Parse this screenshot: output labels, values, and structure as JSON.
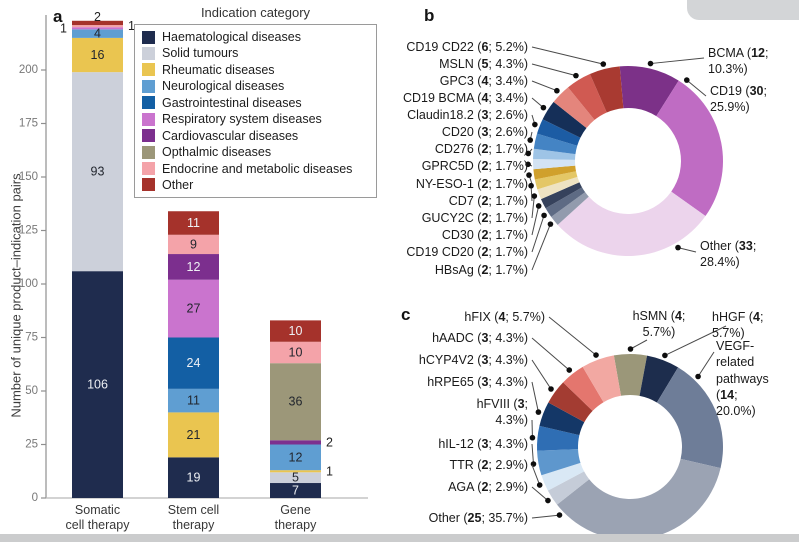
{
  "panel_a": {
    "letter": "a"
  },
  "panel_b": {
    "letter": "b"
  },
  "panel_c": {
    "letter": "c"
  },
  "chart_data": [
    {
      "type": "bar",
      "stacked": true,
      "title": "",
      "ylabel": "Number of unique product–indication pairs",
      "ylim": [
        0,
        225
      ],
      "yticks": [
        0,
        25,
        50,
        75,
        100,
        125,
        150,
        175,
        200
      ],
      "grid": false,
      "legend_position": "upper-right",
      "legend_title": "Indication category",
      "legend": [
        {
          "label": "Haematological diseases",
          "color": "#1f2c4e"
        },
        {
          "label": "Solid tumours",
          "color": "#ccd0da"
        },
        {
          "label": "Rheumatic diseases",
          "color": "#eac550"
        },
        {
          "label": "Neurological diseases",
          "color": "#5f9ed2"
        },
        {
          "label": "Gastrointestinal diseases",
          "color": "#135fa4"
        },
        {
          "label": "Respiratory system diseases",
          "color": "#ca74ce"
        },
        {
          "label": "Cardiovascular diseases",
          "color": "#7c2f8e"
        },
        {
          "label": "Opthalmic diseases",
          "color": "#9c9779"
        },
        {
          "label": "Endocrine and metabolic diseases",
          "color": "#f4a3a9"
        },
        {
          "label": "Other",
          "color": "#a5322b"
        }
      ],
      "categories": [
        "Somatic cell therapy",
        "Stem cell therapy",
        "Gene therapy"
      ],
      "series": [
        {
          "name": "Haematological diseases",
          "values": [
            106,
            19,
            7
          ]
        },
        {
          "name": "Solid tumours",
          "values": [
            93,
            0,
            5
          ]
        },
        {
          "name": "Rheumatic diseases",
          "values": [
            16,
            21,
            1
          ]
        },
        {
          "name": "Neurological diseases",
          "values": [
            4,
            11,
            12
          ]
        },
        {
          "name": "Gastrointestinal diseases",
          "values": [
            0,
            24,
            0
          ]
        },
        {
          "name": "Respiratory system diseases",
          "values": [
            1,
            27,
            0
          ]
        },
        {
          "name": "Cardiovascular diseases",
          "values": [
            0,
            12,
            2
          ]
        },
        {
          "name": "Opthalmic diseases",
          "values": [
            0,
            0,
            36
          ]
        },
        {
          "name": "Endocrine and metabolic diseases",
          "values": [
            1,
            9,
            10
          ]
        },
        {
          "name": "Other",
          "values": [
            2,
            11,
            10
          ]
        }
      ],
      "totals": [
        223,
        134,
        83
      ]
    },
    {
      "type": "pie",
      "subtype": "donut",
      "title": "",
      "total": 116,
      "slices": [
        {
          "name": "BCMA",
          "count": 12,
          "pct": "10.3%",
          "color": "#7c3188"
        },
        {
          "name": "CD19",
          "count": 30,
          "pct": "25.9%",
          "color": "#bf6cc3"
        },
        {
          "name": "Other",
          "count": 33,
          "pct": "28.4%",
          "color": "#ecd4ec"
        },
        {
          "name": "HBsAg",
          "count": 2,
          "pct": "1.7%",
          "color": "#929bad"
        },
        {
          "name": "CD19 CD20",
          "count": 2,
          "pct": "1.7%",
          "color": "#5e6b84"
        },
        {
          "name": "CD30",
          "count": 2,
          "pct": "1.7%",
          "color": "#36425c"
        },
        {
          "name": "GUCY2C",
          "count": 2,
          "pct": "1.7%",
          "color": "#eee3c2"
        },
        {
          "name": "CD7",
          "count": 2,
          "pct": "1.7%",
          "color": "#e4c766"
        },
        {
          "name": "NY-ESO-1",
          "count": 2,
          "pct": "1.7%",
          "color": "#d0a02c"
        },
        {
          "name": "GPRC5D",
          "count": 2,
          "pct": "1.7%",
          "color": "#d3e3f3"
        },
        {
          "name": "CD276",
          "count": 2,
          "pct": "1.7%",
          "color": "#9ec4e6"
        },
        {
          "name": "CD20",
          "count": 3,
          "pct": "2.6%",
          "color": "#4484c4"
        },
        {
          "name": "Claudin18.2",
          "count": 3,
          "pct": "2.6%",
          "color": "#1c5ca4"
        },
        {
          "name": "CD19 BCMA",
          "count": 4,
          "pct": "3.4%",
          "color": "#152f58"
        },
        {
          "name": "GPC3",
          "count": 4,
          "pct": "3.4%",
          "color": "#e4857c"
        },
        {
          "name": "MSLN",
          "count": 5,
          "pct": "4.3%",
          "color": "#d05a52"
        },
        {
          "name": "CD19 CD22",
          "count": 6,
          "pct": "5.2%",
          "color": "#a93a31"
        }
      ]
    },
    {
      "type": "pie",
      "subtype": "donut",
      "title": "",
      "total": 70,
      "slices": [
        {
          "name": "hSMN",
          "count": 4,
          "pct": "5.7%",
          "color": "#9b9779"
        },
        {
          "name": "hHGF",
          "count": 4,
          "pct": "5.7%",
          "color": "#1d2d4d"
        },
        {
          "name": "VEGF-related pathways",
          "count": 14,
          "pct": "20.0%",
          "color": "#6e7d98"
        },
        {
          "name": "Other",
          "count": 25,
          "pct": "35.7%",
          "color": "#9ba3b3"
        },
        {
          "name": "AGA",
          "count": 2,
          "pct": "2.9%",
          "color": "#c5ccd8"
        },
        {
          "name": "TTR",
          "count": 2,
          "pct": "2.9%",
          "color": "#d9e8f5"
        },
        {
          "name": "hIL-12",
          "count": 3,
          "pct": "4.3%",
          "color": "#5e97cd"
        },
        {
          "name": "hFVIII",
          "count": 3,
          "pct": "4.3%",
          "color": "#2f6eb4"
        },
        {
          "name": "hRPE65",
          "count": 3,
          "pct": "4.3%",
          "color": "#143767"
        },
        {
          "name": "hCYP4V2",
          "count": 3,
          "pct": "4.3%",
          "color": "#a33c32"
        },
        {
          "name": "hAADC",
          "count": 3,
          "pct": "4.3%",
          "color": "#e4766e"
        },
        {
          "name": "hFIX",
          "count": 4,
          "pct": "5.7%",
          "color": "#f2a8a2"
        }
      ]
    }
  ]
}
